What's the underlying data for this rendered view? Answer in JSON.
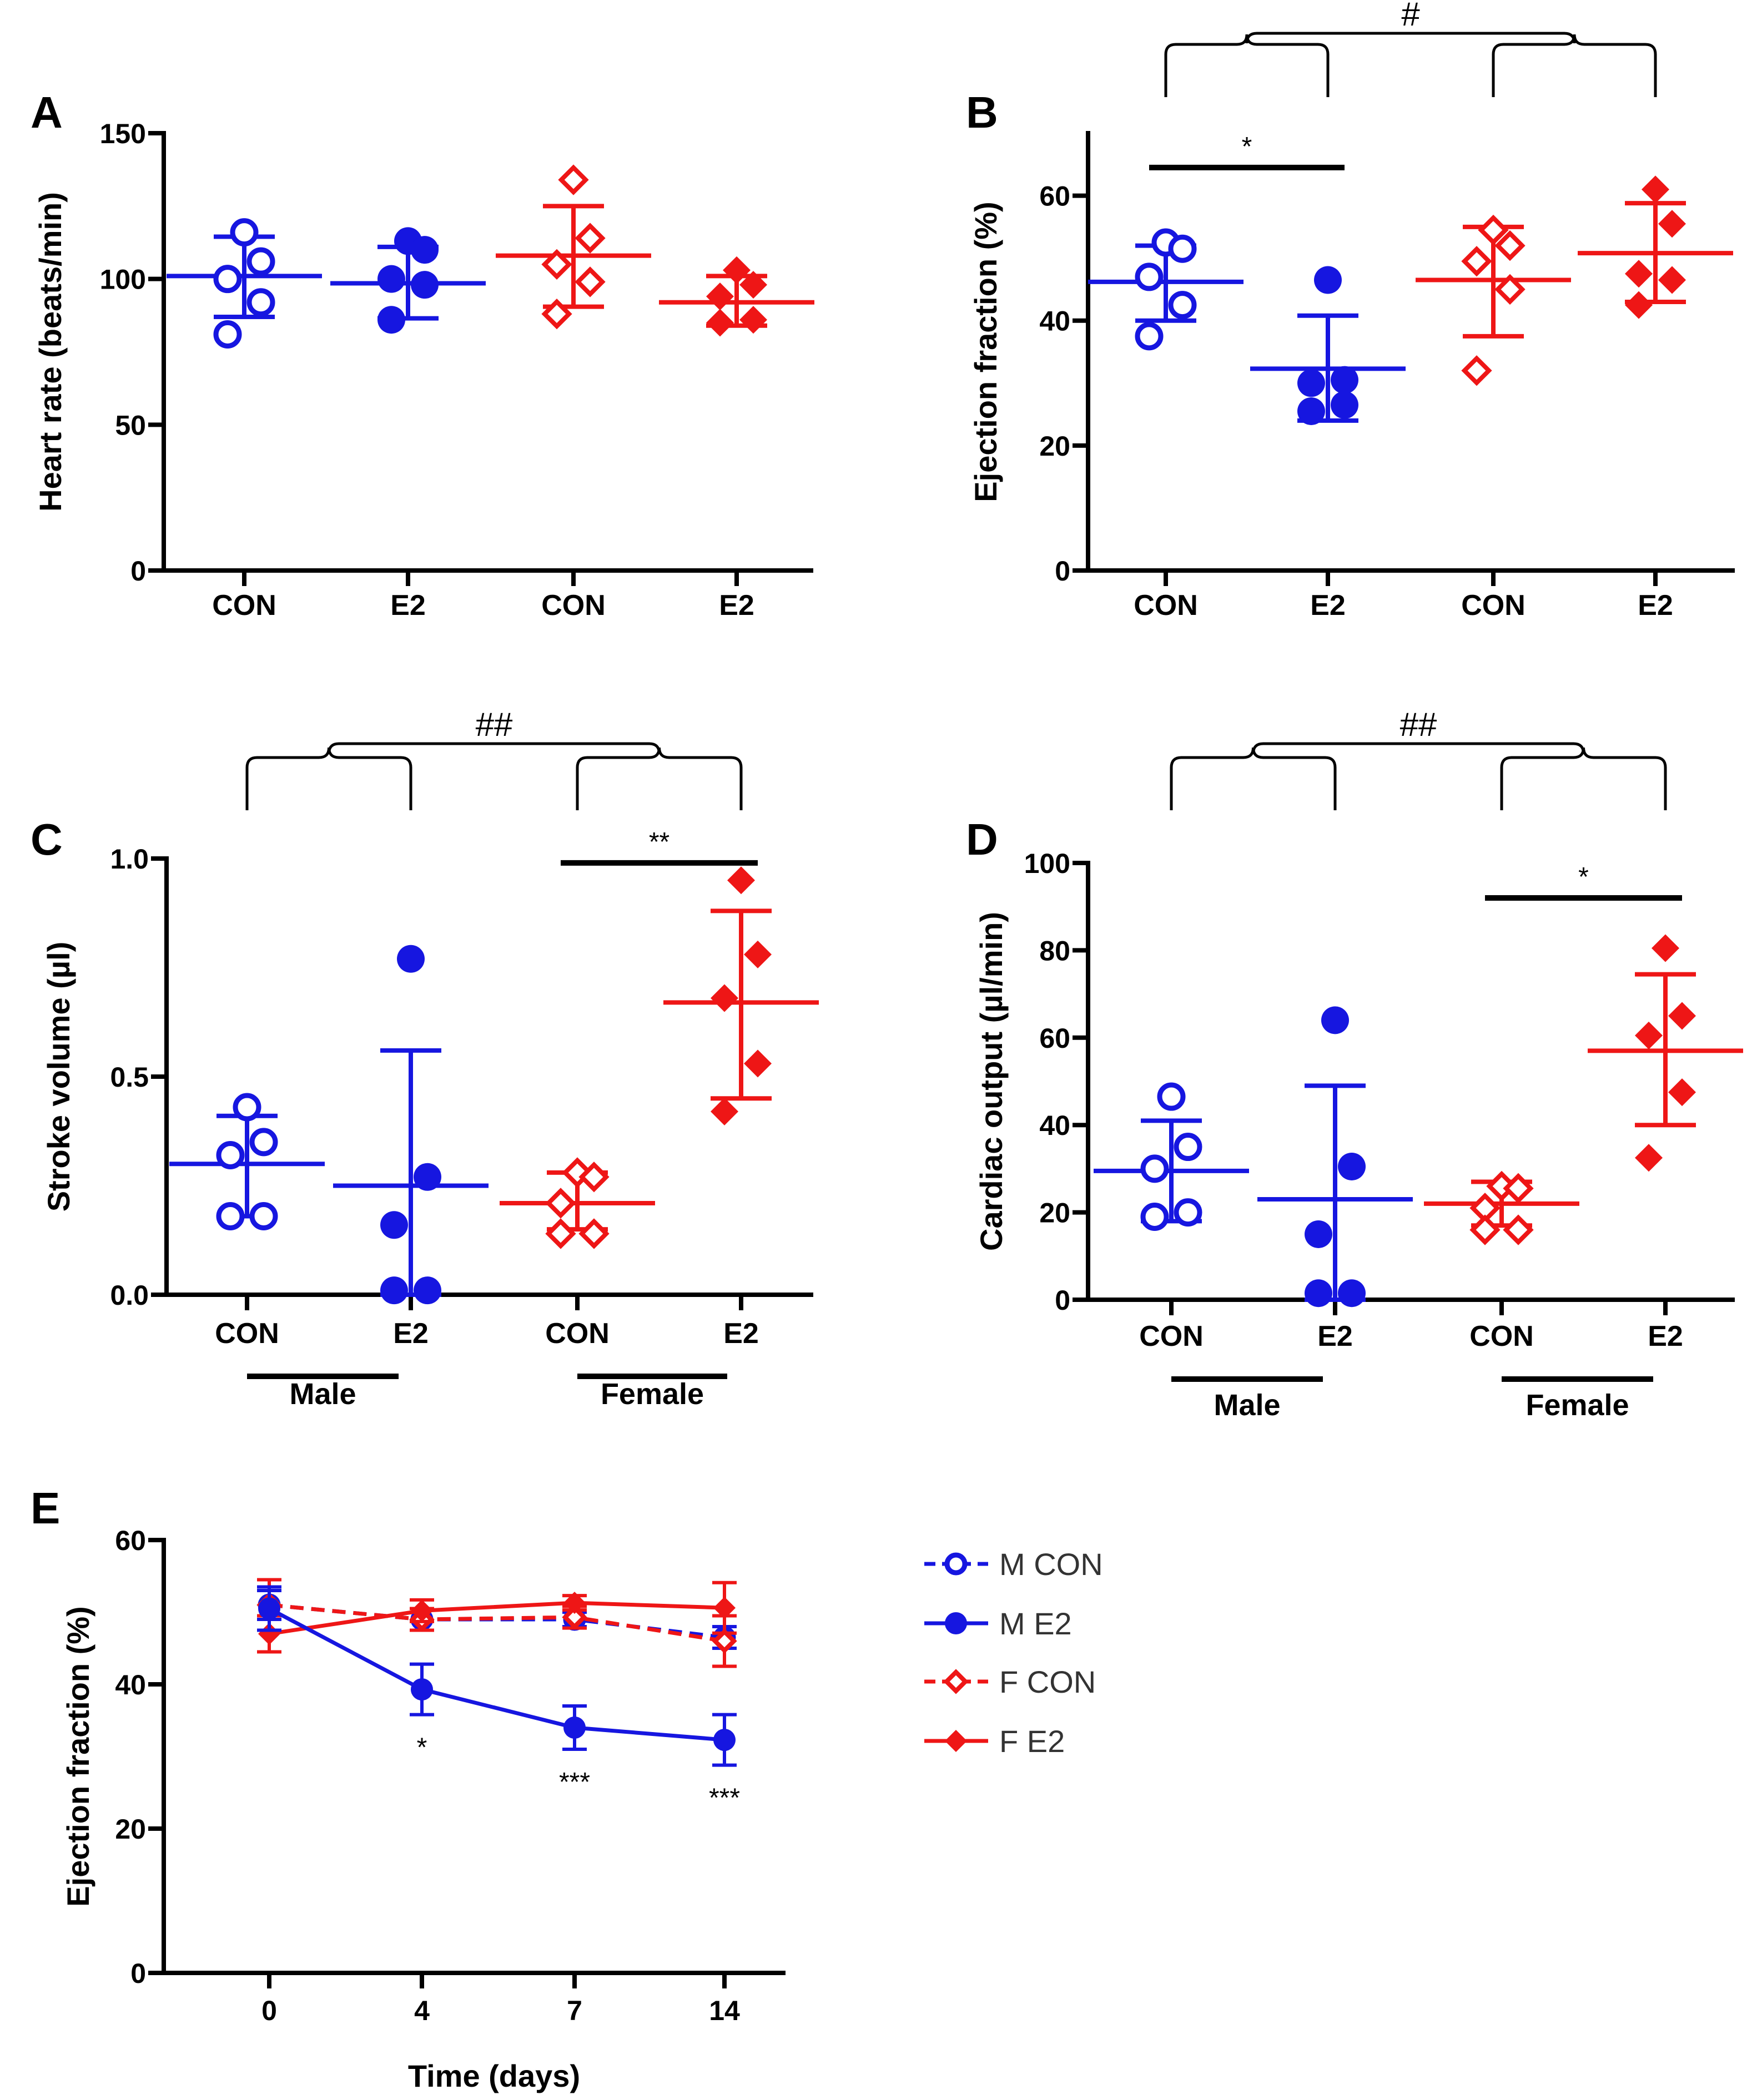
{
  "colors": {
    "blue": "#1616e0",
    "red": "#ee1616",
    "black": "#000000"
  },
  "chart_data": [
    {
      "type": "scatter",
      "panel_label": "A",
      "ylabel": "Heart rate (beats/min)",
      "ylim": [
        0,
        150
      ],
      "yticks": [
        0,
        50,
        100,
        150
      ],
      "categories": [
        "CON",
        "E2",
        "CON",
        "E2"
      ],
      "groups": [
        {
          "sex": "M",
          "treatment": "CON",
          "color": "#1616e0",
          "marker": "circle-open",
          "points": [
            116,
            106,
            100,
            92,
            81
          ],
          "mean": 101,
          "sd_upper": 114.5,
          "sd_lower": 87
        },
        {
          "sex": "M",
          "treatment": "E2",
          "color": "#1616e0",
          "marker": "circle-filled",
          "points": [
            113,
            110,
            100,
            98,
            86
          ],
          "mean": 98.5,
          "sd_upper": 111,
          "sd_lower": 86.5
        },
        {
          "sex": "F",
          "treatment": "CON",
          "color": "#ee1616",
          "marker": "diamond-open",
          "points": [
            134,
            114,
            105,
            99,
            88
          ],
          "mean": 108,
          "sd_upper": 125,
          "sd_lower": 90.5
        },
        {
          "sex": "F",
          "treatment": "E2",
          "color": "#ee1616",
          "marker": "diamond-filled",
          "points": [
            103,
            98,
            94,
            86,
            85
          ],
          "mean": 92,
          "sd_upper": 101,
          "sd_lower": 84
        }
      ],
      "annotations": []
    },
    {
      "type": "scatter",
      "panel_label": "B",
      "ylabel": "Ejection fraction (%)",
      "ylim": [
        0,
        70
      ],
      "yticks": [
        0,
        20,
        40,
        60
      ],
      "categories": [
        "CON",
        "E2",
        "CON",
        "E2"
      ],
      "groups": [
        {
          "sex": "M",
          "treatment": "CON",
          "color": "#1616e0",
          "marker": "circle-open",
          "points": [
            52.5,
            51.5,
            47,
            42.5,
            37.5
          ],
          "mean": 46.2,
          "sd_upper": 52,
          "sd_lower": 40
        },
        {
          "sex": "M",
          "treatment": "E2",
          "color": "#1616e0",
          "marker": "circle-filled",
          "points": [
            46.5,
            30.5,
            30,
            26.5,
            25.5
          ],
          "mean": 32.3,
          "sd_upper": 40.8,
          "sd_lower": 24
        },
        {
          "sex": "F",
          "treatment": "CON",
          "color": "#ee1616",
          "marker": "diamond-open",
          "points": [
            54.5,
            52,
            49.5,
            45,
            32
          ],
          "mean": 46.5,
          "sd_upper": 55,
          "sd_lower": 37.5
        },
        {
          "sex": "F",
          "treatment": "E2",
          "color": "#ee1616",
          "marker": "diamond-filled",
          "points": [
            61,
            55.5,
            47.5,
            46.5,
            42.5
          ],
          "mean": 50.8,
          "sd_upper": 58.8,
          "sd_lower": 43
        }
      ],
      "annotations": [
        {
          "kind": "sig_line",
          "text": "*",
          "from": 0,
          "to": 1,
          "value": 64.5
        },
        {
          "kind": "bracket",
          "text": "#",
          "left": [
            0,
            1
          ],
          "right": [
            2,
            3
          ]
        }
      ]
    },
    {
      "type": "scatter",
      "panel_label": "C",
      "ylabel": "Stroke volume (µl)",
      "ylim": [
        0,
        1.0
      ],
      "yticks": [
        0.0,
        0.5,
        1.0
      ],
      "ytick_labels": [
        "0.0",
        "0.5",
        "1.0"
      ],
      "categories": [
        "CON",
        "E2",
        "CON",
        "E2"
      ],
      "sex_groups": [
        "Male",
        "Female"
      ],
      "groups": [
        {
          "sex": "M",
          "treatment": "CON",
          "color": "#1616e0",
          "marker": "circle-open",
          "points": [
            0.43,
            0.35,
            0.32,
            0.18,
            0.18
          ],
          "mean": 0.3,
          "sd_upper": 0.41,
          "sd_lower": 0.18
        },
        {
          "sex": "M",
          "treatment": "E2",
          "color": "#1616e0",
          "marker": "circle-filled",
          "points": [
            0.77,
            0.27,
            0.16,
            0.01,
            0.01
          ],
          "mean": 0.25,
          "sd_upper": 0.56,
          "sd_lower": 0.0
        },
        {
          "sex": "F",
          "treatment": "CON",
          "color": "#ee1616",
          "marker": "diamond-open",
          "points": [
            0.28,
            0.27,
            0.21,
            0.14,
            0.14
          ],
          "mean": 0.21,
          "sd_upper": 0.28,
          "sd_lower": 0.15
        },
        {
          "sex": "F",
          "treatment": "E2",
          "color": "#ee1616",
          "marker": "diamond-filled",
          "points": [
            0.95,
            0.78,
            0.68,
            0.53,
            0.42
          ],
          "mean": 0.67,
          "sd_upper": 0.88,
          "sd_lower": 0.45
        }
      ],
      "annotations": [
        {
          "kind": "sig_line",
          "text": "**",
          "from": 2,
          "to": 3,
          "value": 0.99
        },
        {
          "kind": "bracket",
          "text": "##",
          "left": [
            0,
            1
          ],
          "right": [
            2,
            3
          ]
        }
      ]
    },
    {
      "type": "scatter",
      "panel_label": "D",
      "ylabel": "Cardiac output (µl/min)",
      "ylim": [
        0,
        100
      ],
      "yticks": [
        0,
        20,
        40,
        60,
        80,
        100
      ],
      "categories": [
        "CON",
        "E2",
        "CON",
        "E2"
      ],
      "sex_groups": [
        "Male",
        "Female"
      ],
      "groups": [
        {
          "sex": "M",
          "treatment": "CON",
          "color": "#1616e0",
          "marker": "circle-open",
          "points": [
            46.5,
            35,
            30,
            20,
            19
          ],
          "mean": 29.5,
          "sd_upper": 41,
          "sd_lower": 18
        },
        {
          "sex": "M",
          "treatment": "E2",
          "color": "#1616e0",
          "marker": "circle-filled",
          "points": [
            64,
            30.5,
            15,
            1.5,
            1.5
          ],
          "mean": 23,
          "sd_upper": 49,
          "sd_lower": 0
        },
        {
          "sex": "F",
          "treatment": "CON",
          "color": "#ee1616",
          "marker": "diamond-open",
          "points": [
            26,
            25.5,
            21,
            16,
            16
          ],
          "mean": 22,
          "sd_upper": 27,
          "sd_lower": 17
        },
        {
          "sex": "F",
          "treatment": "E2",
          "color": "#ee1616",
          "marker": "diamond-filled",
          "points": [
            80.5,
            65,
            60.5,
            47.5,
            32.5
          ],
          "mean": 57,
          "sd_upper": 74.5,
          "sd_lower": 40
        }
      ],
      "annotations": [
        {
          "kind": "sig_line",
          "text": "*",
          "from": 2,
          "to": 3,
          "value": 92
        },
        {
          "kind": "bracket",
          "text": "##",
          "left": [
            0,
            1
          ],
          "right": [
            2,
            3
          ]
        }
      ]
    },
    {
      "type": "line",
      "panel_label": "E",
      "xlabel": "Time (days)",
      "ylabel": "Ejection fraction (%)",
      "x": [
        0,
        4,
        7,
        14
      ],
      "x_positions": [
        0,
        1,
        2,
        3
      ],
      "ylim": [
        0,
        60
      ],
      "yticks": [
        0,
        20,
        40,
        60
      ],
      "legend_position": "right",
      "series": [
        {
          "name": "M CON",
          "color": "#1616e0",
          "marker": "circle-open",
          "dashed": true,
          "values": [
            51,
            49,
            49,
            46.5
          ],
          "err": [
            2,
            1.5,
            1,
            1.5
          ]
        },
        {
          "name": "M E2",
          "color": "#1616e0",
          "marker": "circle-filled",
          "dashed": false,
          "values": [
            50.5,
            39.3,
            34,
            32.3
          ],
          "err": [
            3,
            3.5,
            3,
            3.5
          ]
        },
        {
          "name": "F CON",
          "color": "#ee1616",
          "marker": "diamond-open",
          "dashed": true,
          "values": [
            51,
            49,
            49.3,
            46
          ],
          "err": [
            3.5,
            1.5,
            1.5,
            3.5
          ]
        },
        {
          "name": "F E2",
          "color": "#ee1616",
          "marker": "diamond-filled",
          "dashed": false,
          "values": [
            47,
            50.2,
            51.3,
            50.6
          ],
          "err": [
            2.5,
            1.5,
            1,
            3.5
          ]
        }
      ],
      "significance": [
        {
          "x_index": 1,
          "text": "*"
        },
        {
          "x_index": 2,
          "text": "***"
        },
        {
          "x_index": 3,
          "text": "***"
        }
      ]
    }
  ]
}
